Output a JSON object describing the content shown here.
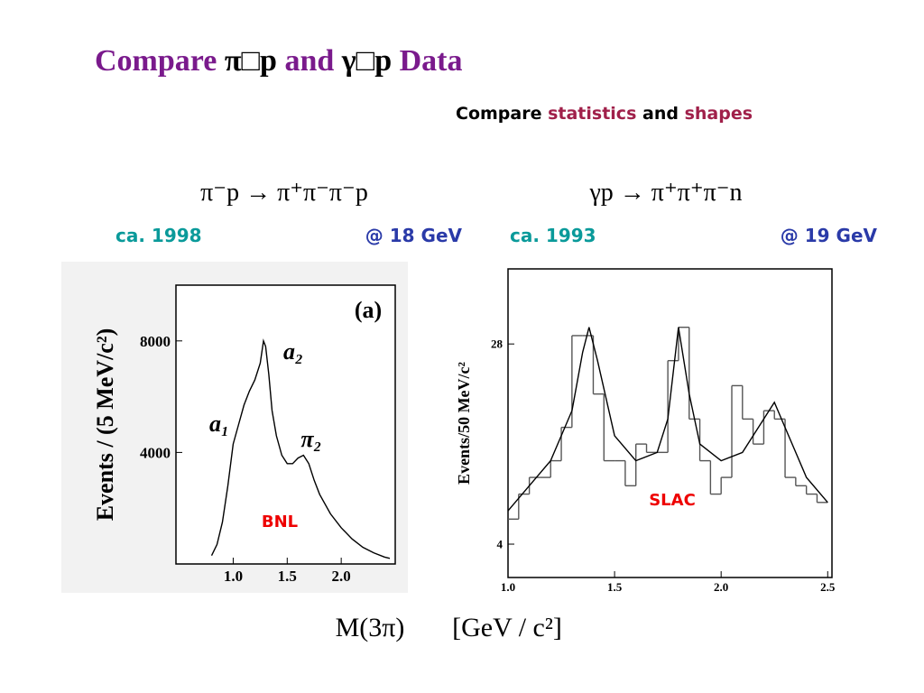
{
  "slide": {
    "title": [
      "Compare ",
      "π□p",
      " and ",
      "γ□p",
      " Data"
    ],
    "subtitle": [
      "Compare ",
      "statistics",
      " and ",
      "shapes"
    ],
    "left_reaction": "π⁻p → π⁺π⁻π⁻p",
    "right_reaction": "γp → π⁺π⁺π⁻n",
    "left_year": "ca. 1998",
    "left_energy": "@ 18 GeV",
    "right_year": "ca. 1993",
    "right_energy": "@ 19 GeV",
    "x_axis_label": "M(3π)",
    "x_axis_unit": "[GeV / c²]"
  },
  "chart_data": [
    {
      "type": "line",
      "ylabel": "Events / (5 MeV/c²)",
      "annotations": [
        "(a)",
        "a₂",
        "a₁",
        "π₂",
        "BNL"
      ],
      "x": [
        0.8,
        0.85,
        0.9,
        0.95,
        1.0,
        1.05,
        1.1,
        1.15,
        1.2,
        1.25,
        1.28,
        1.3,
        1.33,
        1.36,
        1.4,
        1.45,
        1.5,
        1.55,
        1.6,
        1.65,
        1.7,
        1.75,
        1.8,
        1.9,
        2.0,
        2.1,
        2.2,
        2.3,
        2.4,
        2.45
      ],
      "values": [
        300,
        700,
        1500,
        2800,
        4300,
        5000,
        5700,
        6200,
        6600,
        7200,
        8000,
        7800,
        6800,
        5500,
        4600,
        3900,
        3600,
        3600,
        3800,
        3900,
        3600,
        3000,
        2500,
        1800,
        1300,
        900,
        600,
        400,
        250,
        200
      ],
      "color": "#000000",
      "xlim": [
        0.47,
        2.5
      ],
      "ylim": [
        0,
        10000
      ],
      "xticks": [
        {
          "value": 1,
          "label": "1.0"
        },
        1.5,
        {
          "value": 2,
          "label": "2.0"
        }
      ],
      "yticks": [
        4000,
        8000
      ]
    },
    {
      "type": "histogram",
      "ylabel": "Events/50  MeV/c²",
      "annotations": [
        "SLAC"
      ],
      "bins": [
        1.0,
        1.05,
        1.1,
        1.15,
        1.2,
        1.25,
        1.3,
        1.35,
        1.4,
        1.45,
        1.5,
        1.55,
        1.6,
        1.65,
        1.7,
        1.75,
        1.8,
        1.85,
        1.9,
        1.95,
        2.0,
        2.05,
        2.1,
        2.15,
        2.2,
        2.25,
        2.3,
        2.35,
        2.4,
        2.45,
        2.5
      ],
      "counts": [
        7,
        10,
        12,
        12,
        14,
        18,
        29,
        29,
        22,
        14,
        14,
        11,
        16,
        15,
        15,
        26,
        30,
        19,
        14,
        10,
        12,
        23,
        19,
        16,
        20,
        19,
        12,
        11,
        10,
        9
      ],
      "color": "#555555",
      "curve_x": [
        1.0,
        1.1,
        1.2,
        1.3,
        1.35,
        1.38,
        1.42,
        1.5,
        1.6,
        1.7,
        1.75,
        1.8,
        1.85,
        1.9,
        2.0,
        2.1,
        2.2,
        2.25,
        2.3,
        2.4,
        2.5
      ],
      "curve_values": [
        8,
        11,
        14,
        20,
        27,
        30,
        26,
        17,
        14,
        15,
        19,
        30,
        22,
        16,
        14,
        15,
        19,
        21,
        18,
        12,
        9
      ],
      "curve_color": "#000000",
      "xlim": [
        1.0,
        2.52
      ],
      "ylim": [
        0,
        37
      ],
      "xticks": [
        {
          "value": 1,
          "label": "1.0"
        },
        1.5,
        {
          "value": 2,
          "label": "2.0"
        },
        2.5
      ],
      "yticks": [
        4,
        28
      ]
    }
  ]
}
